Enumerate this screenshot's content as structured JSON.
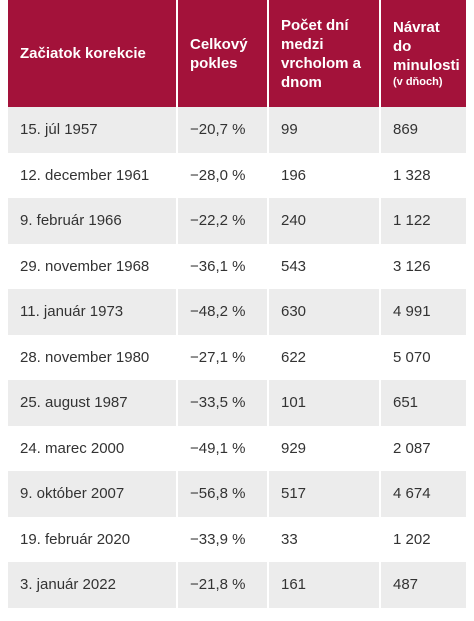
{
  "table": {
    "headers": [
      "Začiatok korekcie",
      "Celkový pokles",
      "Počet dní medzi vrcholom a dnom",
      "Návrat do minulosti"
    ],
    "header_note": "(v dňoch)",
    "rows": [
      [
        "15. júl 1957",
        "−20,7 %",
        "99",
        "869"
      ],
      [
        "12. december 1961",
        "−28,0 %",
        "196",
        "1 328"
      ],
      [
        "9. február 1966",
        "−22,2 %",
        "240",
        "1 122"
      ],
      [
        "29. november 1968",
        "−36,1 %",
        "543",
        "3 126"
      ],
      [
        "11. január 1973",
        "−48,2 %",
        "630",
        "4 991"
      ],
      [
        "28. november 1980",
        "−27,1 %",
        "622",
        "5 070"
      ],
      [
        "25. august 1987",
        "−33,5 %",
        "101",
        "651"
      ],
      [
        "24. marec 2000",
        "−49,1 %",
        "929",
        "2 087"
      ],
      [
        "9. október 2007",
        "−56,8 %",
        "517",
        "4 674"
      ],
      [
        "19. február 2020",
        "−33,9 %",
        "33",
        "1 202"
      ],
      [
        "3. január 2022",
        "−21,8 %",
        "161",
        "487"
      ]
    ]
  }
}
